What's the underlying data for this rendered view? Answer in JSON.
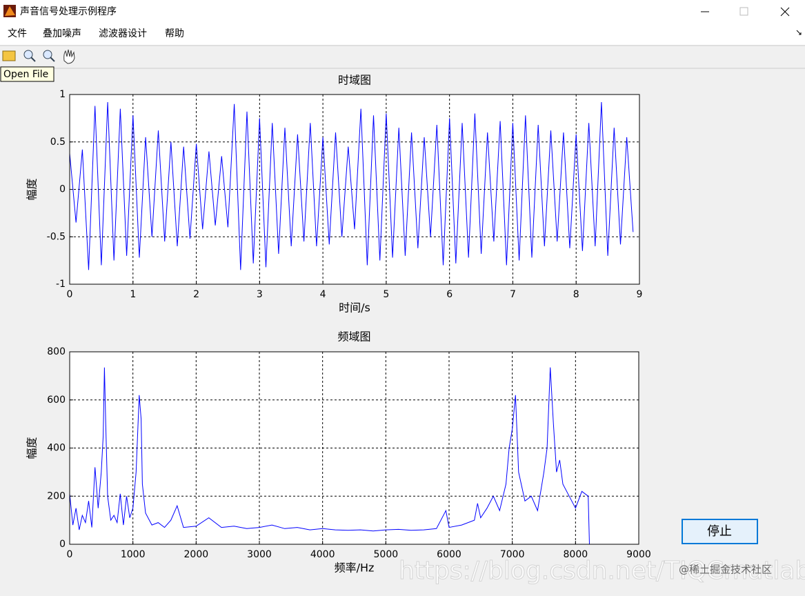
{
  "window": {
    "title": "声音信号处理示例程序"
  },
  "menu": [
    "文件",
    "叠加噪声",
    "滤波器设计",
    "帮助"
  ],
  "tooltip": "Open File",
  "button": "停止",
  "watermark": {
    "url": "https://blog.csdn.net/TIQCmatlab",
    "source": "@稀土掘金技术社区"
  },
  "chart_data": [
    {
      "type": "line",
      "title": "时域图",
      "x_label": "时间/s",
      "y_label": "幅度",
      "color": "#0000ff",
      "grid": true,
      "xlim": [
        0,
        9
      ],
      "xticks": [
        0,
        1,
        2,
        3,
        4,
        5,
        6,
        7,
        8,
        9
      ],
      "ylim": [
        -1,
        1
      ],
      "yticks": [
        -1,
        -0.5,
        0,
        0.5,
        1
      ],
      "x": [
        0,
        0.1,
        0.2,
        0.3,
        0.4,
        0.5,
        0.6,
        0.7,
        0.8,
        0.9,
        1,
        1.1,
        1.2,
        1.3,
        1.4,
        1.5,
        1.6,
        1.7,
        1.8,
        1.9,
        2,
        2.1,
        2.2,
        2.3,
        2.4,
        2.5,
        2.6,
        2.7,
        2.8,
        2.9,
        3,
        3.1,
        3.2,
        3.3,
        3.4,
        3.5,
        3.6,
        3.7,
        3.8,
        3.9,
        4,
        4.1,
        4.2,
        4.3,
        4.4,
        4.5,
        4.6,
        4.7,
        4.8,
        4.9,
        5,
        5.1,
        5.2,
        5.3,
        5.4,
        5.5,
        5.6,
        5.7,
        5.8,
        5.9,
        6,
        6.1,
        6.2,
        6.3,
        6.4,
        6.5,
        6.6,
        6.7,
        6.8,
        6.9,
        7,
        7.1,
        7.2,
        7.3,
        7.4,
        7.5,
        7.6,
        7.7,
        7.8,
        7.9,
        8,
        8.1,
        8.2,
        8.3,
        8.4,
        8.5,
        8.6,
        8.7,
        8.8,
        8.9
      ],
      "values": [
        0.38,
        -0.35,
        0.42,
        -0.85,
        0.88,
        -0.8,
        0.92,
        -0.75,
        0.85,
        -0.7,
        0.78,
        -0.72,
        0.55,
        -0.5,
        0.62,
        -0.55,
        0.5,
        -0.6,
        0.45,
        -0.52,
        0.48,
        -0.42,
        0.4,
        -0.38,
        0.35,
        -0.4,
        0.9,
        -0.85,
        0.82,
        -0.78,
        0.75,
        -0.82,
        0.7,
        -0.68,
        0.65,
        -0.6,
        0.58,
        -0.55,
        0.7,
        -0.6,
        0.55,
        -0.58,
        0.6,
        -0.5,
        0.45,
        -0.42,
        0.85,
        -0.8,
        0.78,
        -0.75,
        0.8,
        -0.72,
        0.65,
        -0.7,
        0.6,
        -0.62,
        0.55,
        -0.5,
        0.68,
        -0.8,
        0.75,
        -0.78,
        0.7,
        -0.72,
        0.8,
        -0.68,
        0.6,
        -0.55,
        0.72,
        -0.8,
        0.7,
        -0.75,
        0.78,
        -0.72,
        0.68,
        -0.6,
        0.62,
        -0.55,
        0.6,
        -0.62,
        0.58,
        -0.65,
        0.7,
        -0.6,
        0.92,
        -0.7,
        0.65,
        -0.58,
        0.55,
        -0.45
      ]
    },
    {
      "type": "line",
      "title": "频域图",
      "x_label": "频率/Hz",
      "y_label": "幅度",
      "color": "#0000ff",
      "grid": true,
      "xlim": [
        0,
        9000
      ],
      "xticks": [
        0,
        1000,
        2000,
        3000,
        4000,
        5000,
        6000,
        7000,
        8000,
        9000
      ],
      "ylim": [
        0,
        800
      ],
      "yticks": [
        0,
        200,
        400,
        600,
        800
      ],
      "x": [
        0,
        50,
        100,
        150,
        200,
        250,
        300,
        350,
        400,
        450,
        500,
        530,
        550,
        570,
        600,
        650,
        700,
        750,
        800,
        850,
        900,
        950,
        1000,
        1050,
        1100,
        1130,
        1150,
        1200,
        1300,
        1400,
        1500,
        1600,
        1700,
        1800,
        2000,
        2200,
        2400,
        2600,
        2800,
        3000,
        3200,
        3400,
        3600,
        3800,
        4000,
        4200,
        4400,
        4600,
        4800,
        5000,
        5200,
        5400,
        5600,
        5800,
        5950,
        6000,
        6200,
        6400,
        6450,
        6500,
        6600,
        6700,
        6800,
        6900,
        6950,
        7000,
        7050,
        7100,
        7200,
        7300,
        7400,
        7500,
        7550,
        7600,
        7650,
        7700,
        7750,
        7800,
        7900,
        8000,
        8100,
        8200,
        8220
      ],
      "values": [
        210,
        80,
        150,
        60,
        120,
        90,
        180,
        70,
        320,
        150,
        300,
        450,
        735,
        500,
        200,
        100,
        120,
        90,
        210,
        80,
        200,
        110,
        150,
        300,
        620,
        520,
        250,
        130,
        80,
        90,
        70,
        100,
        160,
        70,
        75,
        110,
        70,
        75,
        65,
        70,
        80,
        65,
        70,
        60,
        65,
        60,
        58,
        60,
        55,
        60,
        62,
        58,
        60,
        65,
        140,
        70,
        80,
        100,
        170,
        110,
        150,
        200,
        140,
        250,
        400,
        480,
        620,
        300,
        180,
        200,
        140,
        300,
        400,
        735,
        500,
        300,
        350,
        250,
        200,
        150,
        220,
        200,
        0
      ]
    }
  ]
}
